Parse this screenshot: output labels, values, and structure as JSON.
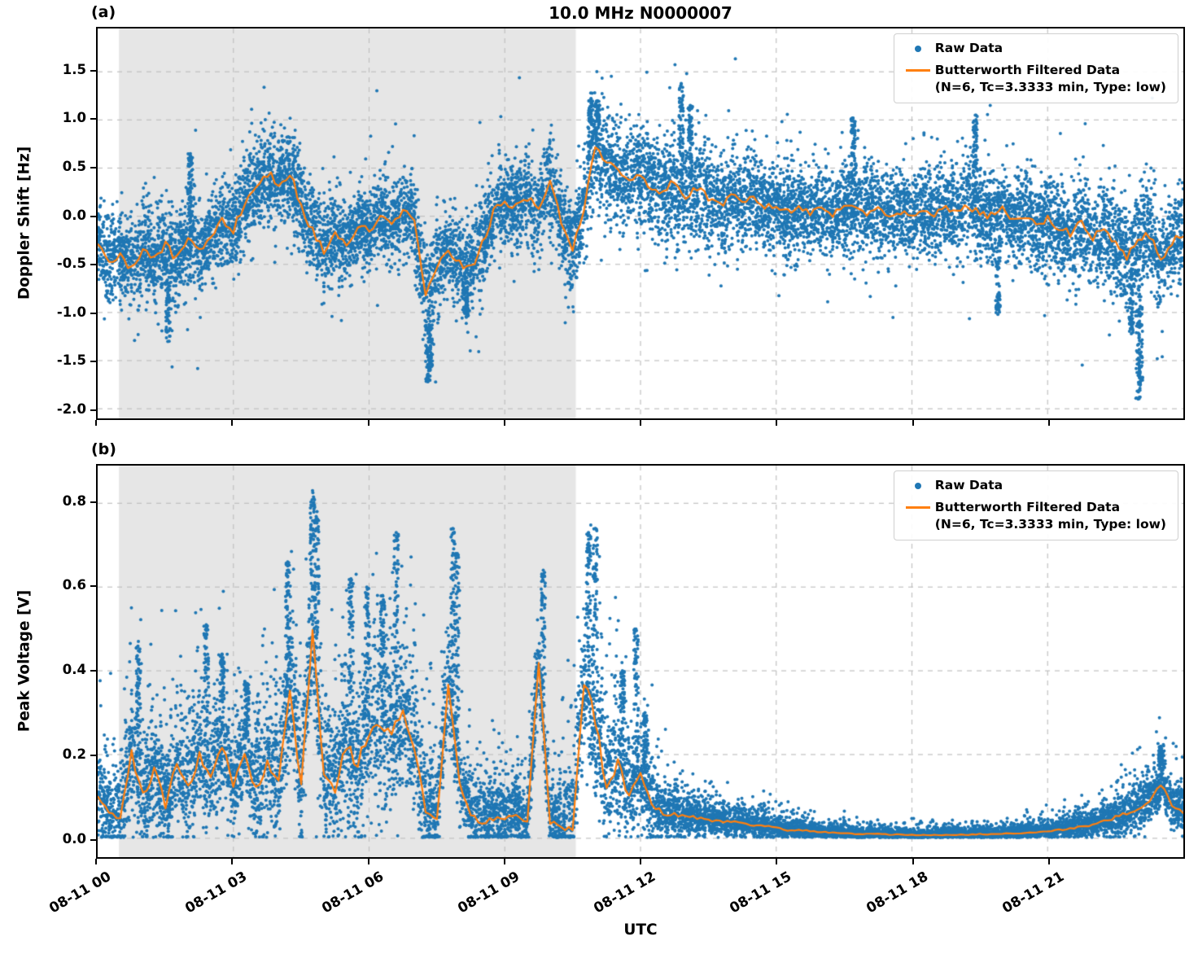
{
  "figure": {
    "colors": {
      "raw": "#1f77b4",
      "filtered": "#ff7f0e",
      "shade": "#e6e6e6",
      "grid": "#c0c0c0",
      "spine": "#000000"
    },
    "legend": {
      "raw_label": "Raw Data",
      "filtered_label": "Butterworth Filtered Data",
      "filtered_sublabel": "(N=6, Tc=3.3333 min, Type: low)"
    }
  },
  "chart_data": [
    {
      "type": "scatter",
      "panel": "a",
      "panel_label": "(a)",
      "title": "10.0 MHz N0000007",
      "ylabel": "Doppler Shift [Hz]",
      "xlabel": "UTC",
      "xlim_hours": [
        0,
        24
      ],
      "ylim": [
        -2.1,
        1.95
      ],
      "yticks": [
        -2.0,
        -1.5,
        -1.0,
        -0.5,
        0.0,
        0.5,
        1.0,
        1.5
      ],
      "ytick_labels": [
        "-2.0",
        "-1.5",
        "-1.0",
        "-0.5",
        "0.0",
        "0.5",
        "1.0",
        "1.5"
      ],
      "xticks_hours": [
        0,
        3,
        6,
        9,
        12,
        15,
        18,
        21
      ],
      "xtick_labels": [
        "08-11 00",
        "08-11 03",
        "08-11 06",
        "08-11 09",
        "08-11 12",
        "08-11 15",
        "08-11 18",
        "08-11 21"
      ],
      "shaded_region_hours": [
        0.47,
        10.57
      ],
      "grid": true,
      "legend_position": "upper right",
      "series": [
        {
          "name": "Raw Data",
          "style": "scatter",
          "color": "#1f77b4"
        },
        {
          "name": "Butterworth Filtered Data (N=6, Tc=3.3333 min, Type: low)",
          "style": "line",
          "color": "#ff7f0e"
        }
      ],
      "sample_step_hours": 0.25,
      "filtered_values": [
        -0.25,
        -0.5,
        -0.4,
        -0.55,
        -0.35,
        -0.45,
        -0.3,
        -0.45,
        -0.2,
        -0.35,
        -0.2,
        -0.05,
        -0.15,
        0.15,
        0.3,
        0.45,
        0.35,
        0.45,
        0.1,
        -0.15,
        -0.35,
        -0.2,
        -0.3,
        -0.1,
        -0.15,
        0.0,
        -0.05,
        0.05,
        -0.05,
        -0.85,
        -0.5,
        -0.35,
        -0.5,
        -0.55,
        -0.3,
        0.05,
        0.15,
        0.1,
        0.2,
        0.05,
        0.35,
        -0.05,
        -0.35,
        0.1,
        0.72,
        0.55,
        0.5,
        0.38,
        0.42,
        0.3,
        0.25,
        0.35,
        0.2,
        0.3,
        0.2,
        0.12,
        0.22,
        0.12,
        0.18,
        0.08,
        0.12,
        0.05,
        0.1,
        0.04,
        0.1,
        0.03,
        0.08,
        0.12,
        0.04,
        0.08,
        0.02,
        0.06,
        0.03,
        0.06,
        0.02,
        0.08,
        0.04,
        0.12,
        0.02,
        0.0,
        0.08,
        -0.04,
        0.02,
        -0.08,
        -0.02,
        -0.12,
        -0.18,
        -0.08,
        -0.22,
        -0.12,
        -0.28,
        -0.42,
        -0.25,
        -0.18,
        -0.45,
        -0.28,
        -0.18
      ],
      "raw_spread_step_hours": 1,
      "raw_spread": [
        0.28,
        0.3,
        0.3,
        0.27,
        0.3,
        0.3,
        0.25,
        0.3,
        0.3,
        0.27,
        0.3,
        0.32,
        0.32,
        0.35,
        0.3,
        0.27,
        0.27,
        0.3,
        0.27,
        0.3,
        0.27,
        0.3,
        0.32,
        0.35,
        0.3
      ],
      "raw_outlier_spikes": [
        {
          "t": 1.55,
          "y": -1.3
        },
        {
          "t": 2.05,
          "y": 0.65
        },
        {
          "t": 7.3,
          "y": -1.72
        },
        {
          "t": 7.35,
          "y": -1.6
        },
        {
          "t": 8.15,
          "y": -1.05
        },
        {
          "t": 10.9,
          "y": 1.28
        },
        {
          "t": 11.05,
          "y": 1.2
        },
        {
          "t": 12.9,
          "y": 1.38
        },
        {
          "t": 13.1,
          "y": 1.15
        },
        {
          "t": 16.7,
          "y": 1.02
        },
        {
          "t": 19.4,
          "y": 1.05
        },
        {
          "t": 19.9,
          "y": -1.02
        },
        {
          "t": 22.85,
          "y": -1.22
        },
        {
          "t": 23.0,
          "y": -1.9
        },
        {
          "t": 23.05,
          "y": -1.75
        }
      ]
    },
    {
      "type": "scatter",
      "panel": "b",
      "panel_label": "(b)",
      "title": "",
      "ylabel": "Peak Voltage [V]",
      "xlabel": "UTC",
      "xlim_hours": [
        0,
        24
      ],
      "ylim": [
        -0.045,
        0.89
      ],
      "yticks": [
        0.0,
        0.2,
        0.4,
        0.6,
        0.8
      ],
      "ytick_labels": [
        "0.0",
        "0.2",
        "0.4",
        "0.6",
        "0.8"
      ],
      "xticks_hours": [
        0,
        3,
        6,
        9,
        12,
        15,
        18,
        21
      ],
      "xtick_labels": [
        "08-11 00",
        "08-11 03",
        "08-11 06",
        "08-11 09",
        "08-11 12",
        "08-11 15",
        "08-11 18",
        "08-11 21"
      ],
      "shaded_region_hours": [
        0.47,
        10.57
      ],
      "grid": true,
      "legend_position": "upper right",
      "series": [
        {
          "name": "Raw Data",
          "style": "scatter",
          "color": "#1f77b4"
        },
        {
          "name": "Butterworth Filtered Data (N=6, Tc=3.3333 min, Type: low)",
          "style": "line",
          "color": "#ff7f0e"
        }
      ],
      "sample_step_hours": 0.25,
      "filtered_values": [
        0.1,
        0.06,
        0.05,
        0.2,
        0.1,
        0.16,
        0.08,
        0.18,
        0.12,
        0.2,
        0.14,
        0.22,
        0.13,
        0.2,
        0.12,
        0.18,
        0.14,
        0.36,
        0.12,
        0.51,
        0.14,
        0.12,
        0.22,
        0.18,
        0.26,
        0.28,
        0.25,
        0.3,
        0.22,
        0.06,
        0.05,
        0.37,
        0.14,
        0.05,
        0.04,
        0.05,
        0.04,
        0.06,
        0.04,
        0.42,
        0.04,
        0.03,
        0.03,
        0.38,
        0.28,
        0.12,
        0.18,
        0.1,
        0.15,
        0.08,
        0.06,
        0.06,
        0.05,
        0.05,
        0.045,
        0.04,
        0.04,
        0.035,
        0.03,
        0.03,
        0.025,
        0.02,
        0.02,
        0.018,
        0.015,
        0.013,
        0.012,
        0.01,
        0.01,
        0.01,
        0.009,
        0.009,
        0.008,
        0.008,
        0.008,
        0.008,
        0.009,
        0.009,
        0.01,
        0.01,
        0.011,
        0.012,
        0.013,
        0.015,
        0.017,
        0.02,
        0.024,
        0.028,
        0.032,
        0.04,
        0.05,
        0.06,
        0.07,
        0.09,
        0.13,
        0.08,
        0.06
      ],
      "raw_spread_step_hours": 1,
      "raw_spread": [
        0.06,
        0.08,
        0.08,
        0.07,
        0.1,
        0.09,
        0.12,
        0.1,
        0.06,
        0.05,
        0.05,
        0.12,
        0.06,
        0.03,
        0.02,
        0.015,
        0.01,
        0.008,
        0.008,
        0.008,
        0.01,
        0.012,
        0.018,
        0.035,
        0.03
      ],
      "raw_outlier_spikes": [
        {
          "t": 0.9,
          "y": 0.47
        },
        {
          "t": 2.4,
          "y": 0.51
        },
        {
          "t": 2.75,
          "y": 0.44
        },
        {
          "t": 3.3,
          "y": 0.37
        },
        {
          "t": 4.2,
          "y": 0.66
        },
        {
          "t": 4.75,
          "y": 0.83
        },
        {
          "t": 4.85,
          "y": 0.78
        },
        {
          "t": 5.6,
          "y": 0.62
        },
        {
          "t": 5.95,
          "y": 0.6
        },
        {
          "t": 6.3,
          "y": 0.58
        },
        {
          "t": 6.6,
          "y": 0.73
        },
        {
          "t": 7.85,
          "y": 0.74
        },
        {
          "t": 7.95,
          "y": 0.68
        },
        {
          "t": 9.85,
          "y": 0.64
        },
        {
          "t": 10.85,
          "y": 0.73
        },
        {
          "t": 11.0,
          "y": 0.74
        },
        {
          "t": 11.6,
          "y": 0.4
        },
        {
          "t": 11.9,
          "y": 0.5
        },
        {
          "t": 12.1,
          "y": 0.3
        },
        {
          "t": 23.5,
          "y": 0.22
        }
      ]
    }
  ]
}
